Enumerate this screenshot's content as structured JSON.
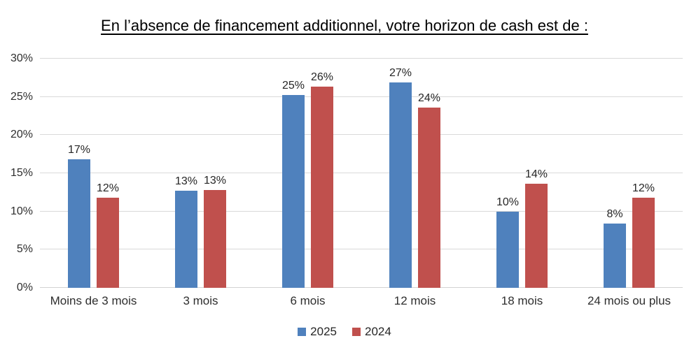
{
  "title": "En l’absence de financement additionnel, votre horizon de cash est de :",
  "chart_data": {
    "type": "bar",
    "title": "En l’absence de financement additionnel, votre horizon de cash est de :",
    "categories": [
      "Moins de 3 mois",
      "3 mois",
      "6 mois",
      "12 mois",
      "18 mois",
      "24 mois ou plus"
    ],
    "series": [
      {
        "name": "2025",
        "color": "#4f81bd",
        "values": [
          16.8,
          12.7,
          25.2,
          26.9,
          10.0,
          8.4
        ],
        "labels": [
          "17%",
          "13%",
          "25%",
          "27%",
          "10%",
          "8%"
        ]
      },
      {
        "name": "2024",
        "color": "#c0504d",
        "values": [
          11.8,
          12.8,
          26.3,
          23.6,
          13.6,
          11.8
        ],
        "labels": [
          "12%",
          "13%",
          "26%",
          "24%",
          "14%",
          "12%"
        ]
      }
    ],
    "xlabel": "",
    "ylabel": "",
    "ylim": [
      0,
      30
    ],
    "yticks": [
      {
        "label": "0%",
        "value": 0
      },
      {
        "label": "5%",
        "value": 5
      },
      {
        "label": "10%",
        "value": 10
      },
      {
        "label": "15%",
        "value": 15
      },
      {
        "label": "20%",
        "value": 20
      },
      {
        "label": "25%",
        "value": 25
      },
      {
        "label": "30%",
        "value": 30
      }
    ],
    "grid": true,
    "legend_position": "bottom"
  }
}
